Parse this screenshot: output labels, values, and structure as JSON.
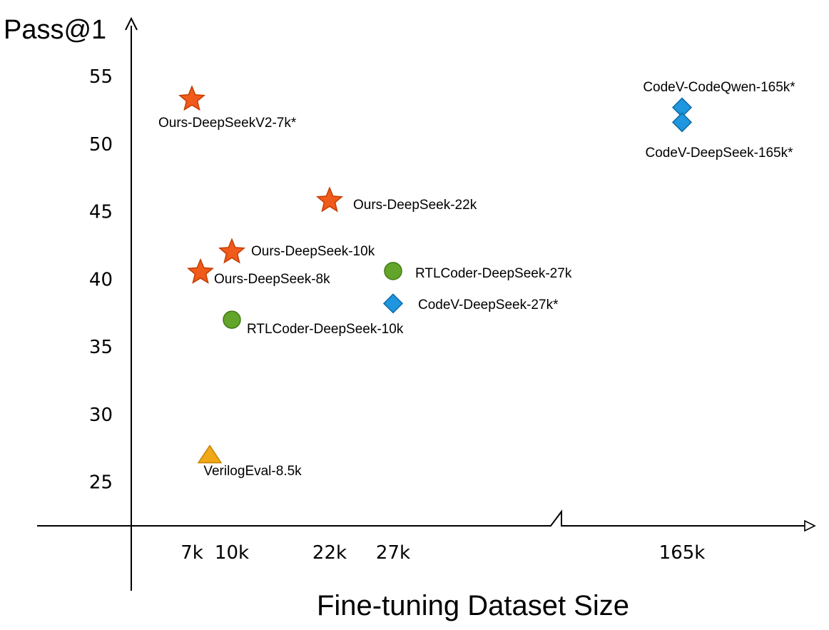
{
  "chart_data": {
    "type": "scatter",
    "ylabel": "Pass@1",
    "xlabel": "Fine-tuning Dataset Size",
    "y_ticks": [
      25,
      30,
      35,
      40,
      45,
      50,
      55
    ],
    "x_ticks": [
      "7k",
      "10k",
      "22k",
      "27k",
      "165k"
    ],
    "x_axis_break": true,
    "series": [
      {
        "name": "Ours",
        "marker": "star",
        "color": "#f05a1a",
        "edge_color": "#c43d00",
        "points": [
          {
            "label": "Ours-DeepSeekV2-7k*",
            "x": "7k",
            "y": 53.3
          },
          {
            "label": "Ours-DeepSeek-22k",
            "x": "22k",
            "y": 45.8
          },
          {
            "label": "Ours-DeepSeek-10k",
            "x": "10k",
            "y": 42.0
          },
          {
            "label": "Ours-DeepSeek-8k",
            "x": "8k",
            "y": 40.5
          }
        ]
      },
      {
        "name": "RTLCoder",
        "marker": "circle",
        "color": "#63a52a",
        "edge_color": "#3f7a14",
        "points": [
          {
            "label": "RTLCoder-DeepSeek-27k",
            "x": "27k",
            "y": 40.6
          },
          {
            "label": "RTLCoder-DeepSeek-10k",
            "x": "10k",
            "y": 37.0
          }
        ]
      },
      {
        "name": "CodeV",
        "marker": "diamond",
        "color": "#1f96dd",
        "edge_color": "#0c6aa6",
        "points": [
          {
            "label": "CodeV-CodeQwen-165k*",
            "x": "165k",
            "y": 52.7
          },
          {
            "label": "CodeV-DeepSeek-165k*",
            "x": "165k",
            "y": 51.6
          },
          {
            "label": "CodeV-DeepSeek-27k*",
            "x": "27k",
            "y": 38.2
          }
        ]
      },
      {
        "name": "VerilogEval",
        "marker": "triangle",
        "color": "#f0a818",
        "edge_color": "#c98100",
        "points": [
          {
            "label": "VerilogEval-8.5k",
            "x": "8.5k",
            "y": 27.0
          }
        ]
      }
    ]
  }
}
